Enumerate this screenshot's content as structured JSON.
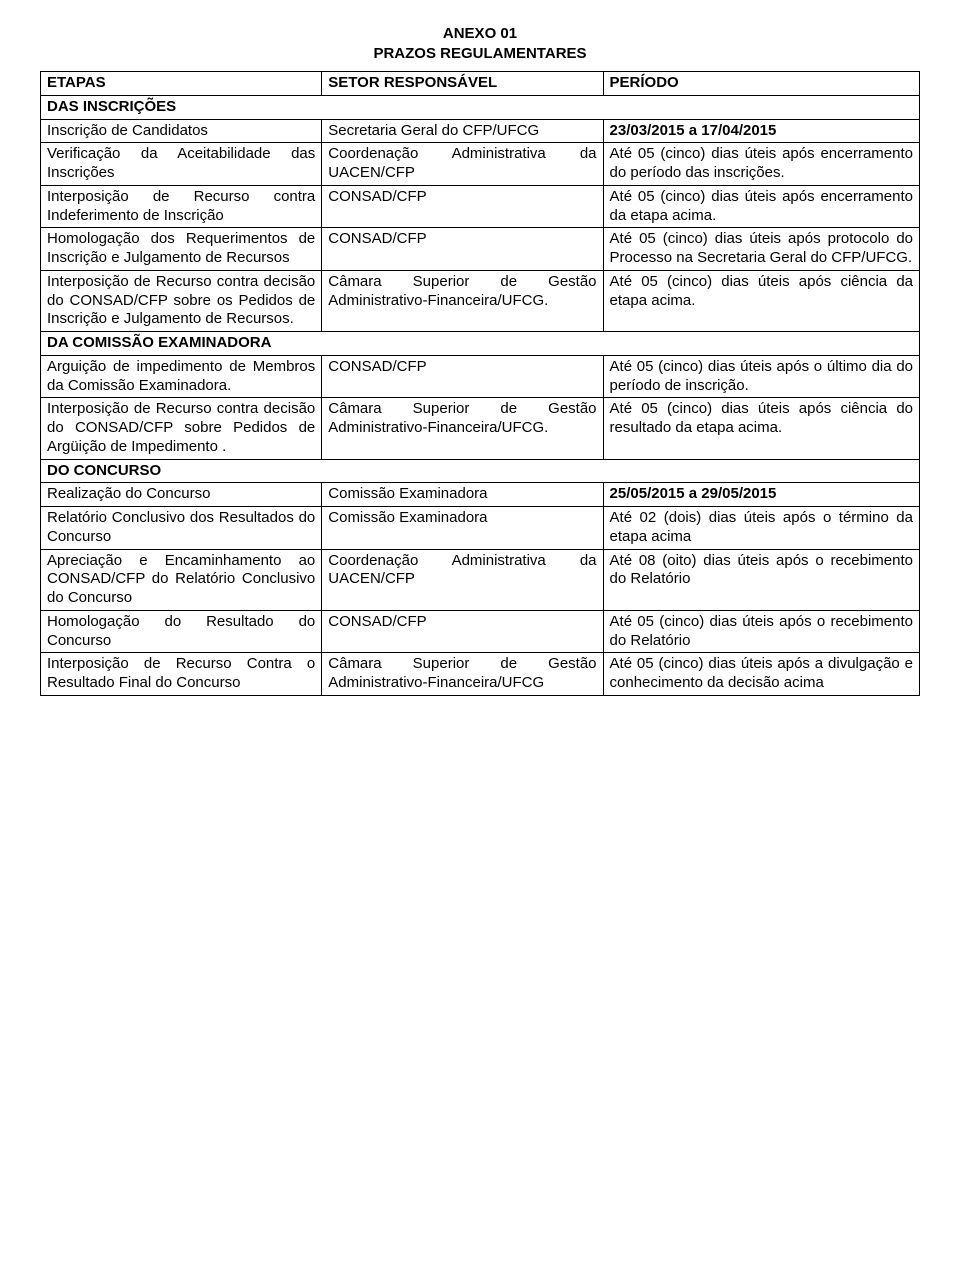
{
  "title": {
    "line1": "ANEXO 01",
    "line2": "PRAZOS REGULAMENTARES"
  },
  "headers": {
    "etapas": "ETAPAS",
    "setor": "SETOR RESPONSÁVEL",
    "periodo": "PERÍODO"
  },
  "sections": {
    "inscricoes": "DAS INSCRIÇÕES",
    "comissao": "DA COMISSÃO EXAMINADORA",
    "concurso": "DO CONCURSO"
  },
  "rows": {
    "r1": {
      "etapa": "Inscrição de Candidatos",
      "setor": "Secretaria Geral do CFP/UFCG",
      "periodo": "23/03/2015 a 17/04/2015"
    },
    "r2": {
      "etapa": "Verificação da Aceitabilidade das Inscrições",
      "setor": "Coordenação Administrativa da UACEN/CFP",
      "periodo": "Até 05 (cinco) dias úteis após encerramento do período das inscrições."
    },
    "r3": {
      "etapa": "Interposição de Recurso contra Indeferimento de Inscrição",
      "setor": "CONSAD/CFP",
      "periodo": "Até 05 (cinco) dias úteis após encerramento da etapa acima."
    },
    "r4": {
      "etapa": "Homologação dos Requerimentos de Inscrição e Julgamento de Recursos",
      "setor": "CONSAD/CFP",
      "periodo": "Até 05 (cinco) dias úteis após protocolo do Processo na Secretaria Geral do CFP/UFCG."
    },
    "r5": {
      "etapa": "Interposição de Recurso contra decisão do CONSAD/CFP sobre os Pedidos de Inscrição e Julgamento de Recursos.",
      "setor": "Câmara Superior de Gestão Administrativo-Financeira/UFCG.",
      "periodo": "Até 05 (cinco) dias úteis após ciência da etapa acima."
    },
    "r6": {
      "etapa": "Arguição de impedimento de Membros da Comissão Examinadora.",
      "setor": "CONSAD/CFP",
      "periodo": "Até 05 (cinco) dias úteis após o último dia do período de inscrição."
    },
    "r7": {
      "etapa": "Interposição de Recurso contra decisão do CONSAD/CFP sobre Pedidos de Argüição de Impedimento .",
      "setor": "Câmara Superior de Gestão Administrativo-Financeira/UFCG.",
      "periodo": "Até 05 (cinco) dias úteis após ciência do resultado da etapa acima."
    },
    "r8": {
      "etapa": "Realização do Concurso",
      "setor": "Comissão Examinadora",
      "periodo": "25/05/2015 a 29/05/2015"
    },
    "r9": {
      "etapa": "Relatório Conclusivo dos Resultados do Concurso",
      "setor": "Comissão Examinadora",
      "periodo": "Até 02 (dois) dias úteis após o término da etapa acima"
    },
    "r10": {
      "etapa": "Apreciação e Encaminhamento ao CONSAD/CFP do Relatório Conclusivo do Concurso",
      "setor": "Coordenação Administrativa da UACEN/CFP",
      "periodo": "Até 08 (oito) dias úteis após o recebimento do Relatório"
    },
    "r11": {
      "etapa": "Homologação do Resultado do Concurso",
      "setor": "CONSAD/CFP",
      "periodo": "Até 05 (cinco) dias úteis após o recebimento do Relatório"
    },
    "r12": {
      "etapa": "Interposição de Recurso Contra o Resultado Final do Concurso",
      "setor": "Câmara Superior de Gestão Administrativo-Financeira/UFCG",
      "periodo": "Até 05 (cinco) dias úteis após a divulgação e conhecimento da decisão acima"
    }
  }
}
